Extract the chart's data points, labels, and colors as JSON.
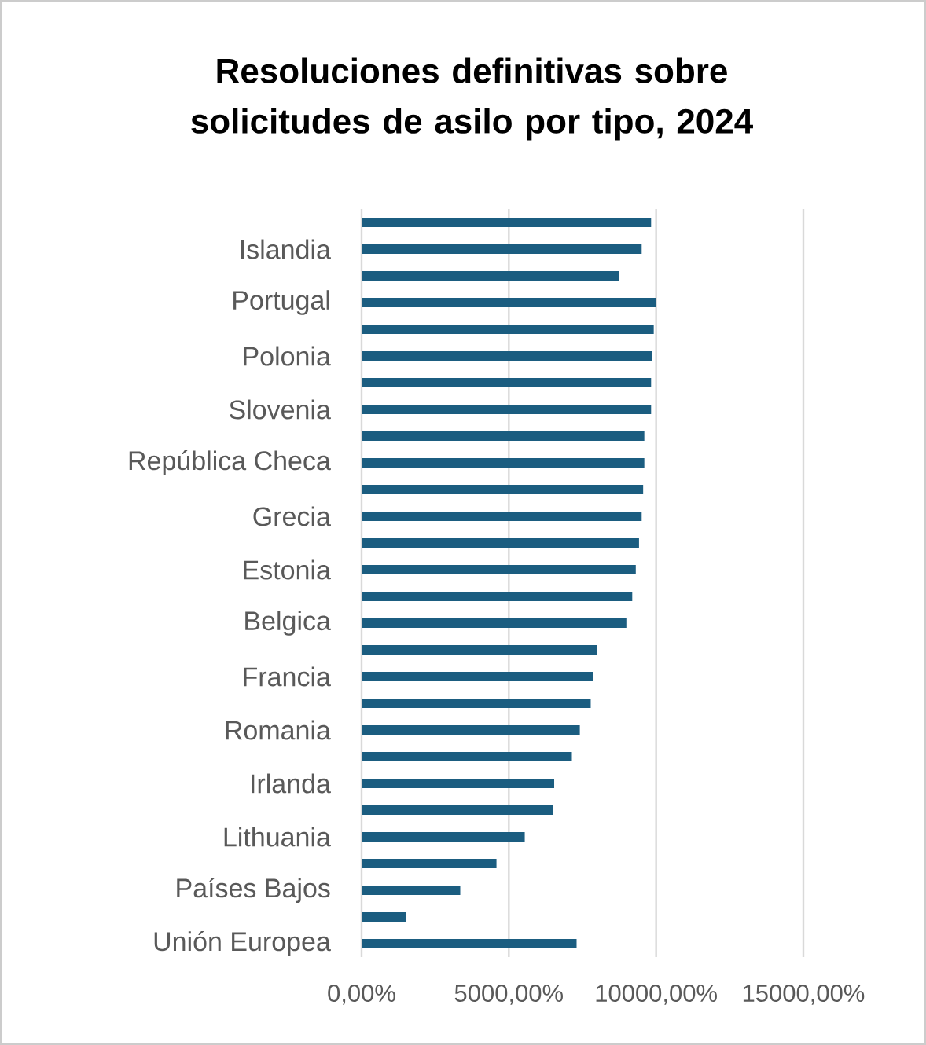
{
  "chart_data": {
    "type": "bar",
    "orientation": "horizontal",
    "title": "Resoluciones definitivas sobre solicitudes de asilo por tipo, 2024",
    "categories": [
      null,
      "Islandia",
      null,
      "Portugal",
      null,
      "Polonia",
      null,
      "Slovenia",
      null,
      "República Checa",
      null,
      "Grecia",
      null,
      "Estonia",
      null,
      "Belgica",
      null,
      "Francia",
      null,
      "Romania",
      null,
      "Irlanda",
      null,
      "Lithuania",
      null,
      "Países Bajos",
      null,
      "Unión Europea"
    ],
    "values": [
      9830,
      9510,
      8740,
      10000,
      9920,
      9870,
      9830,
      9830,
      9600,
      9600,
      9560,
      9510,
      9420,
      9310,
      9190,
      8990,
      8000,
      7850,
      7780,
      7410,
      7140,
      6540,
      6500,
      5540,
      4580,
      3350,
      1500,
      7300
    ],
    "color": "#1b5d80",
    "xlim": [
      0,
      15000
    ],
    "xticks": [
      {
        "value": 0,
        "label": "0,00%"
      },
      {
        "value": 5000,
        "label": "5000,00%"
      },
      {
        "value": 10000,
        "label": "10000,00%"
      },
      {
        "value": 15000,
        "label": "15000,00%"
      }
    ],
    "grid": "x"
  }
}
